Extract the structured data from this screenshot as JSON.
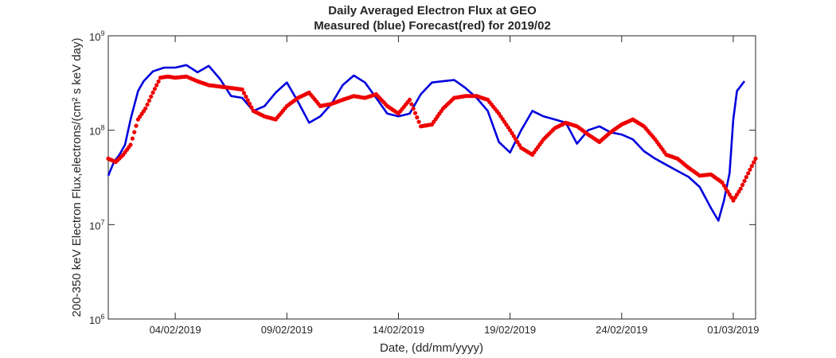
{
  "chart_data": {
    "type": "line",
    "title": "Daily Averaged Electron Flux at GEO",
    "subtitle": "Measured (blue) Forecast(red) for 2019/02",
    "xlabel": "Date, (dd/mm/yyyy)",
    "ylabel": "200-350 keV Electron Flux,electrons/(cm² s keV day)",
    "y_scale": "log",
    "ylim": [
      1000000,
      1000000000
    ],
    "xlim": [
      "2019-02-01",
      "2019-03-02"
    ],
    "grid": false,
    "x_ticks": [
      {
        "date": "2019-02-04",
        "label": "04/02/2019"
      },
      {
        "date": "2019-02-09",
        "label": "09/02/2019"
      },
      {
        "date": "2019-02-14",
        "label": "14/02/2019"
      },
      {
        "date": "2019-02-19",
        "label": "19/02/2019"
      },
      {
        "date": "2019-02-24",
        "label": "24/02/2019"
      },
      {
        "date": "2019-03-01",
        "label": "01/03/2019"
      }
    ],
    "y_ticks": [
      {
        "value": 1000000,
        "base": "10",
        "exp": "6"
      },
      {
        "value": 10000000,
        "base": "10",
        "exp": "7"
      },
      {
        "value": 100000000,
        "base": "10",
        "exp": "8"
      },
      {
        "value": 1000000000,
        "base": "10",
        "exp": "9"
      }
    ],
    "series": [
      {
        "color": "#0000dd",
        "style": "line",
        "points": [
          [
            "2019-02-01T00:00",
            33000000.0
          ],
          [
            "2019-02-01T06:00",
            46000000.0
          ],
          [
            "2019-02-01T12:00",
            55000000.0
          ],
          [
            "2019-02-01T18:00",
            70000000.0
          ],
          [
            "2019-02-02T00:00",
            130000000.0
          ],
          [
            "2019-02-02T08:00",
            260000000.0
          ],
          [
            "2019-02-02T14:00",
            330000000.0
          ],
          [
            "2019-02-03T00:00",
            420000000.0
          ],
          [
            "2019-02-03T12:00",
            460000000.0
          ],
          [
            "2019-02-04T00:00",
            460000000.0
          ],
          [
            "2019-02-04T12:00",
            490000000.0
          ],
          [
            "2019-02-05T00:00",
            410000000.0
          ],
          [
            "2019-02-05T12:00",
            480000000.0
          ],
          [
            "2019-02-06T00:00",
            350000000.0
          ],
          [
            "2019-02-06T12:00",
            230000000.0
          ],
          [
            "2019-02-07T00:00",
            220000000.0
          ],
          [
            "2019-02-07T12:00",
            160000000.0
          ],
          [
            "2019-02-08T00:00",
            180000000.0
          ],
          [
            "2019-02-08T12:00",
            250000000.0
          ],
          [
            "2019-02-09T00:00",
            320000000.0
          ],
          [
            "2019-02-09T12:00",
            200000000.0
          ],
          [
            "2019-02-10T00:00",
            120000000.0
          ],
          [
            "2019-02-10T12:00",
            140000000.0
          ],
          [
            "2019-02-11T00:00",
            190000000.0
          ],
          [
            "2019-02-11T12:00",
            300000000.0
          ],
          [
            "2019-02-12T00:00",
            380000000.0
          ],
          [
            "2019-02-12T12:00",
            320000000.0
          ],
          [
            "2019-02-13T00:00",
            220000000.0
          ],
          [
            "2019-02-13T12:00",
            150000000.0
          ],
          [
            "2019-02-14T00:00",
            140000000.0
          ],
          [
            "2019-02-14T12:00",
            150000000.0
          ],
          [
            "2019-02-15T00:00",
            240000000.0
          ],
          [
            "2019-02-15T12:00",
            320000000.0
          ],
          [
            "2019-02-16T00:00",
            330000000.0
          ],
          [
            "2019-02-16T12:00",
            340000000.0
          ],
          [
            "2019-02-17T00:00",
            280000000.0
          ],
          [
            "2019-02-17T12:00",
            220000000.0
          ],
          [
            "2019-02-18T00:00",
            160000000.0
          ],
          [
            "2019-02-18T12:00",
            75000000.0
          ],
          [
            "2019-02-19T00:00",
            58000000.0
          ],
          [
            "2019-02-19T12:00",
            100000000.0
          ],
          [
            "2019-02-20T00:00",
            160000000.0
          ],
          [
            "2019-02-20T12:00",
            140000000.0
          ],
          [
            "2019-02-21T00:00",
            130000000.0
          ],
          [
            "2019-02-21T12:00",
            120000000.0
          ],
          [
            "2019-02-22T00:00",
            72000000.0
          ],
          [
            "2019-02-22T12:00",
            100000000.0
          ],
          [
            "2019-02-23T00:00",
            110000000.0
          ],
          [
            "2019-02-23T12:00",
            95000000.0
          ],
          [
            "2019-02-24T00:00",
            90000000.0
          ],
          [
            "2019-02-24T12:00",
            80000000.0
          ],
          [
            "2019-02-25T00:00",
            60000000.0
          ],
          [
            "2019-02-25T12:00",
            50000000.0
          ],
          [
            "2019-02-26T00:00",
            43000000.0
          ],
          [
            "2019-02-26T12:00",
            37000000.0
          ],
          [
            "2019-02-27T00:00",
            32000000.0
          ],
          [
            "2019-02-27T12:00",
            25000000.0
          ],
          [
            "2019-02-28T00:00",
            15000000.0
          ],
          [
            "2019-02-28T08:00",
            11000000.0
          ],
          [
            "2019-02-28T14:00",
            18000000.0
          ],
          [
            "2019-02-28T20:00",
            35000000.0
          ],
          [
            "2019-03-01T00:00",
            130000000.0
          ],
          [
            "2019-03-01T04:00",
            260000000.0
          ],
          [
            "2019-03-01T12:00",
            330000000.0
          ]
        ]
      },
      {
        "color": "#ee0000",
        "style": "dots",
        "points": [
          [
            "2019-02-01T00:00",
            50000000.0
          ],
          [
            "2019-02-01T08:00",
            46000000.0
          ],
          [
            "2019-02-01T16:00",
            55000000.0
          ],
          [
            "2019-02-02T00:00",
            70000000.0
          ],
          [
            "2019-02-02T08:00",
            130000000.0
          ],
          [
            "2019-02-02T16:00",
            170000000.0
          ],
          [
            "2019-02-03T00:00",
            250000000.0
          ],
          [
            "2019-02-03T08:00",
            360000000.0
          ],
          [
            "2019-02-03T16:00",
            370000000.0
          ],
          [
            "2019-02-04T00:00",
            360000000.0
          ],
          [
            "2019-02-04T12:00",
            370000000.0
          ],
          [
            "2019-02-05T00:00",
            330000000.0
          ],
          [
            "2019-02-05T12:00",
            300000000.0
          ],
          [
            "2019-02-06T00:00",
            290000000.0
          ],
          [
            "2019-02-06T12:00",
            280000000.0
          ],
          [
            "2019-02-07T00:00",
            270000000.0
          ],
          [
            "2019-02-07T12:00",
            160000000.0
          ],
          [
            "2019-02-08T00:00",
            140000000.0
          ],
          [
            "2019-02-08T12:00",
            130000000.0
          ],
          [
            "2019-02-09T00:00",
            180000000.0
          ],
          [
            "2019-02-09T12:00",
            220000000.0
          ],
          [
            "2019-02-10T00:00",
            250000000.0
          ],
          [
            "2019-02-10T12:00",
            180000000.0
          ],
          [
            "2019-02-11T00:00",
            190000000.0
          ],
          [
            "2019-02-11T12:00",
            210000000.0
          ],
          [
            "2019-02-12T00:00",
            230000000.0
          ],
          [
            "2019-02-12T12:00",
            220000000.0
          ],
          [
            "2019-02-13T00:00",
            240000000.0
          ],
          [
            "2019-02-13T12:00",
            180000000.0
          ],
          [
            "2019-02-14T00:00",
            150000000.0
          ],
          [
            "2019-02-14T12:00",
            210000000.0
          ],
          [
            "2019-02-15T00:00",
            110000000.0
          ],
          [
            "2019-02-15T12:00",
            115000000.0
          ],
          [
            "2019-02-16T00:00",
            170000000.0
          ],
          [
            "2019-02-16T12:00",
            220000000.0
          ],
          [
            "2019-02-17T00:00",
            230000000.0
          ],
          [
            "2019-02-17T12:00",
            230000000.0
          ],
          [
            "2019-02-18T00:00",
            210000000.0
          ],
          [
            "2019-02-18T12:00",
            150000000.0
          ],
          [
            "2019-02-19T00:00",
            100000000.0
          ],
          [
            "2019-02-19T12:00",
            65000000.0
          ],
          [
            "2019-02-20T00:00",
            55000000.0
          ],
          [
            "2019-02-20T12:00",
            80000000.0
          ],
          [
            "2019-02-21T00:00",
            105000000.0
          ],
          [
            "2019-02-21T12:00",
            120000000.0
          ],
          [
            "2019-02-22T00:00",
            110000000.0
          ],
          [
            "2019-02-22T12:00",
            90000000.0
          ],
          [
            "2019-02-23T00:00",
            75000000.0
          ],
          [
            "2019-02-23T12:00",
            95000000.0
          ],
          [
            "2019-02-24T00:00",
            115000000.0
          ],
          [
            "2019-02-24T12:00",
            130000000.0
          ],
          [
            "2019-02-25T00:00",
            110000000.0
          ],
          [
            "2019-02-25T12:00",
            80000000.0
          ],
          [
            "2019-02-26T00:00",
            55000000.0
          ],
          [
            "2019-02-26T12:00",
            50000000.0
          ],
          [
            "2019-02-27T00:00",
            40000000.0
          ],
          [
            "2019-02-27T12:00",
            33000000.0
          ],
          [
            "2019-02-28T00:00",
            34000000.0
          ],
          [
            "2019-02-28T12:00",
            28000000.0
          ],
          [
            "2019-03-01T00:00",
            18000000.0
          ],
          [
            "2019-03-01T08:00",
            24000000.0
          ],
          [
            "2019-03-01T16:00",
            35000000.0
          ],
          [
            "2019-03-02T00:00",
            50000000.0
          ]
        ]
      }
    ]
  }
}
